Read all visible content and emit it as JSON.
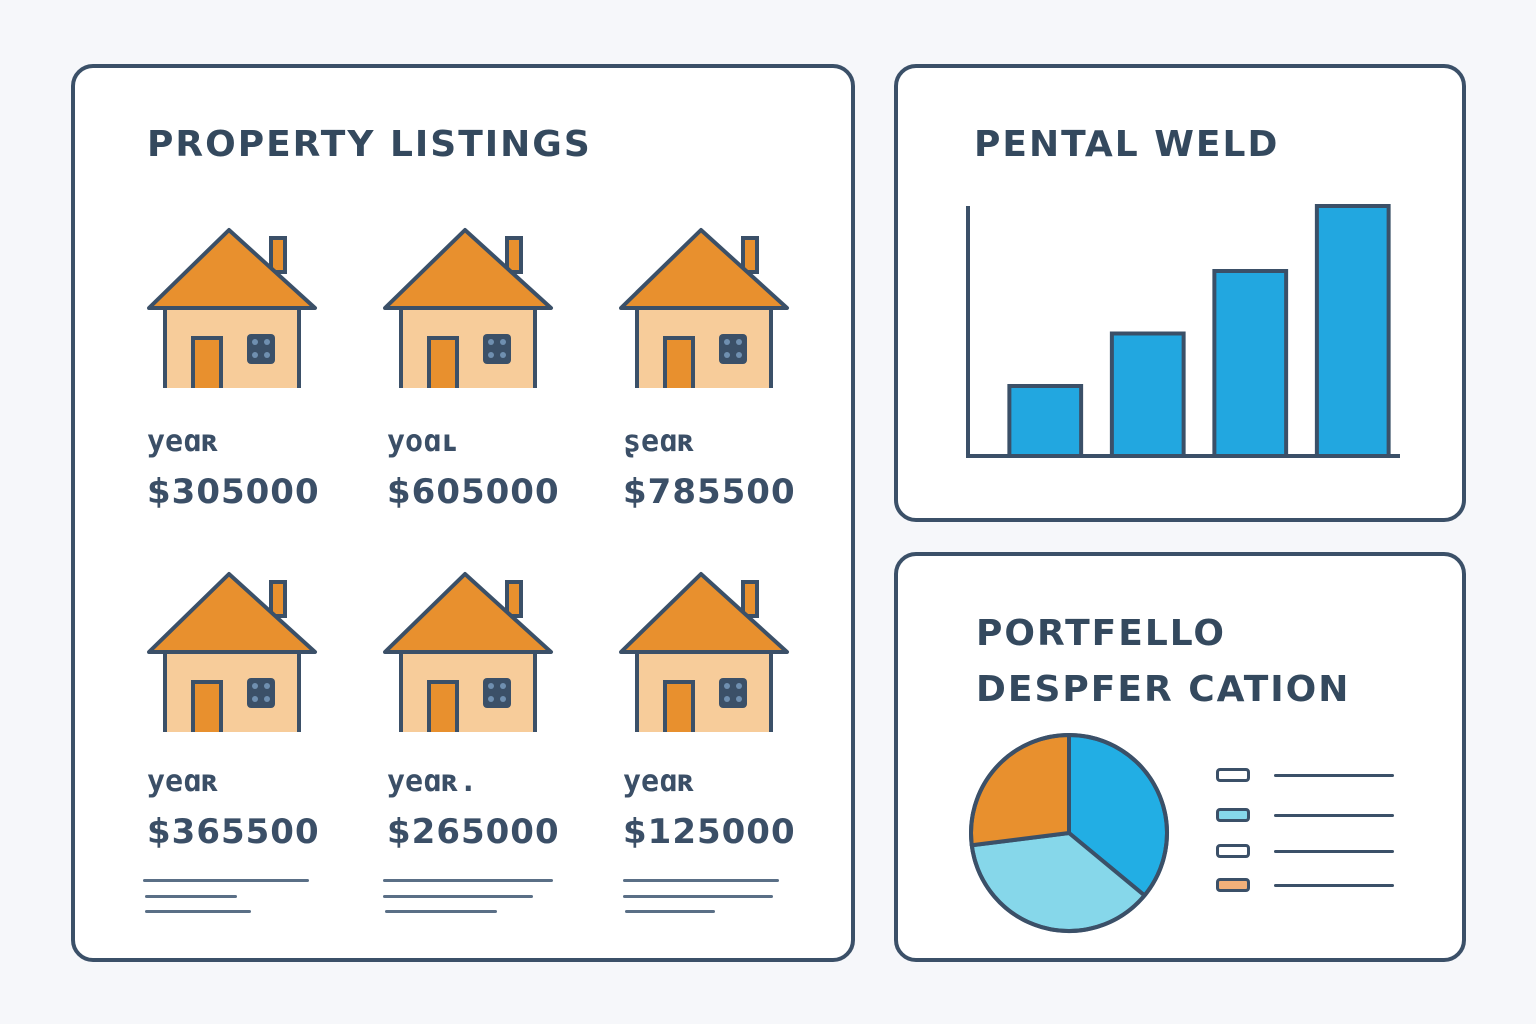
{
  "listings": {
    "title": "PROPERTY LISTINGS",
    "items": [
      {
        "label": "yeɑʀ",
        "price": "$305000"
      },
      {
        "label": "yoɑʟ",
        "price": "$605000"
      },
      {
        "label": "ʂeɑʀ",
        "price": "$785500"
      },
      {
        "label": "yeɑʀ",
        "price": "$365500"
      },
      {
        "label": "yeɑʀ.",
        "price": "$265000"
      },
      {
        "label": "yeɑʀ",
        "price": "$125000"
      }
    ]
  },
  "rental": {
    "title": "PENTAL WELD"
  },
  "portfolio": {
    "title_line1": "PORTFELLO",
    "title_line2": "DESPFER CATION"
  },
  "colors": {
    "roof": "#e8902e",
    "wall": "#f7cc9a",
    "door": "#e8902e",
    "outline": "#3b5068",
    "bar": "#22a7e0",
    "pie_orange": "#e8902e",
    "pie_blue": "#22aee4",
    "pie_light": "#86d7ea"
  },
  "chart_data": [
    {
      "type": "bar",
      "categories": [
        "",
        "",
        "",
        ""
      ],
      "values": [
        28,
        49,
        74,
        100
      ],
      "ylim": [
        0,
        100
      ],
      "title": "PENTAL WELD"
    },
    {
      "type": "pie",
      "labels": [
        "",
        "",
        ""
      ],
      "values": [
        36,
        37,
        27
      ],
      "colors": [
        "#22aee4",
        "#86d7ea",
        "#e8902e"
      ],
      "legend_placement": "right"
    }
  ]
}
